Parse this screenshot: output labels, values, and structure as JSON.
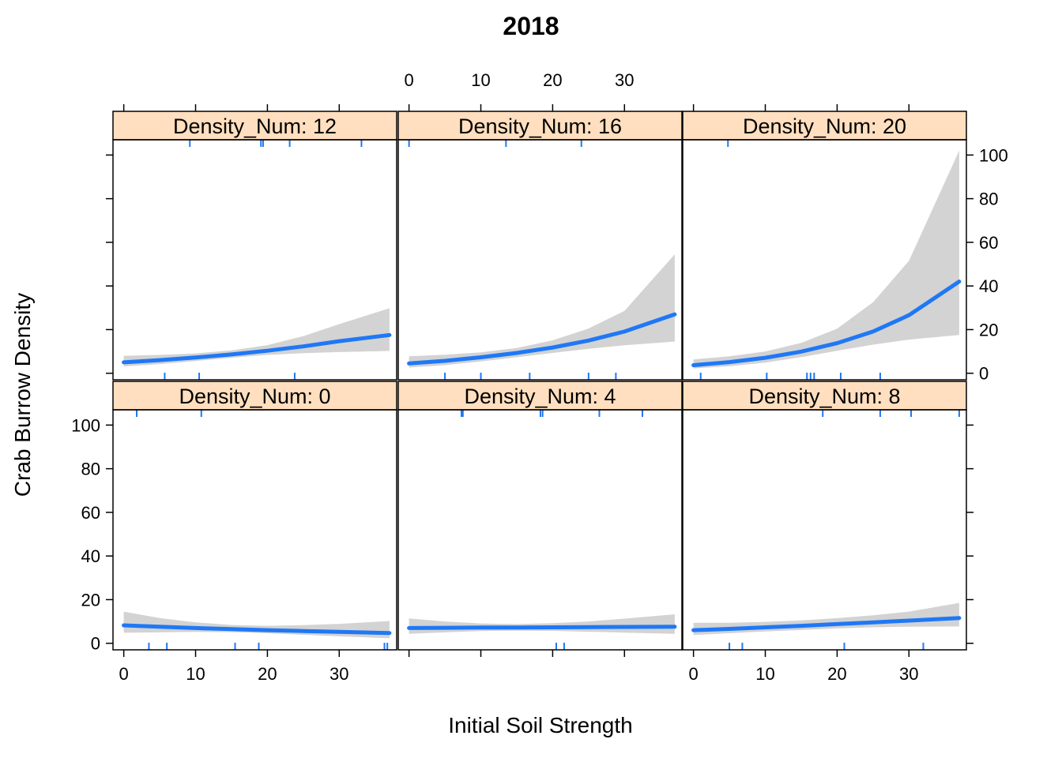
{
  "chart_data": {
    "type": "line",
    "title": "2018",
    "xlabel": "Initial Soil Strength",
    "ylabel": "Crab Burrow Density",
    "xlim": [
      -1.5,
      38
    ],
    "ylim": [
      -3,
      107
    ],
    "x_ticks": [
      0,
      10,
      20,
      30
    ],
    "y_ticks": [
      0,
      20,
      40,
      60,
      80,
      100
    ],
    "grid": false,
    "legend": "none",
    "colors": {
      "line": "#1f78f5",
      "band": "#d3d3d3",
      "strip": "#ffdfbf",
      "rug": "#1f78f5"
    },
    "panels": [
      {
        "strip": "Density_Num: 0",
        "row": 0,
        "col": 0,
        "x": [
          0,
          5,
          10,
          15,
          20,
          25,
          30,
          37
        ],
        "fit": [
          8.2,
          7.6,
          7.0,
          6.5,
          6.0,
          5.6,
          5.2,
          4.7
        ],
        "lower": [
          4.8,
          5.0,
          5.2,
          5.1,
          4.6,
          3.9,
          3.2,
          2.3
        ],
        "upper": [
          14.5,
          11.6,
          9.6,
          8.4,
          8.0,
          8.3,
          8.9,
          10.2
        ],
        "rug_bottom": [
          3.5,
          6,
          15.5,
          18.8,
          36.3,
          36.7
        ],
        "rug_top": [
          1.8,
          10.8
        ]
      },
      {
        "strip": "Density_Num: 4",
        "row": 0,
        "col": 1,
        "x": [
          0,
          5,
          10,
          15,
          20,
          25,
          30,
          37
        ],
        "fit": [
          7.0,
          7.1,
          7.2,
          7.2,
          7.3,
          7.4,
          7.5,
          7.6
        ],
        "lower": [
          4.3,
          5.0,
          5.6,
          5.8,
          5.7,
          5.3,
          4.9,
          4.3
        ],
        "upper": [
          11.4,
          10.0,
          9.1,
          8.8,
          9.2,
          10.0,
          11.3,
          13.3
        ],
        "rug_bottom": [
          20.5,
          21.6
        ],
        "rug_top": [
          7.3,
          7.5,
          18.3,
          18.6,
          26.5,
          32.5
        ]
      },
      {
        "strip": "Density_Num: 8",
        "row": 0,
        "col": 2,
        "x": [
          0,
          5,
          10,
          15,
          20,
          25,
          30,
          37
        ],
        "fit": [
          6.0,
          6.6,
          7.3,
          8.0,
          8.8,
          9.6,
          10.4,
          11.6
        ],
        "lower": [
          3.8,
          4.6,
          5.4,
          6.1,
          6.8,
          7.3,
          7.6,
          7.7
        ],
        "upper": [
          9.4,
          9.4,
          9.8,
          10.5,
          11.5,
          12.8,
          14.5,
          18.5
        ],
        "rug_bottom": [
          5,
          6.8,
          21,
          32
        ],
        "rug_top": [
          18,
          26,
          30.3,
          37
        ]
      },
      {
        "strip": "Density_Num: 12",
        "row": 1,
        "col": 0,
        "x": [
          0,
          5,
          10,
          15,
          20,
          25,
          30,
          37
        ],
        "fit": [
          5.0,
          6.0,
          7.2,
          8.6,
          10.3,
          12.3,
          14.7,
          17.5
        ],
        "lower": [
          3.1,
          4.2,
          5.6,
          7.1,
          8.4,
          9.2,
          9.7,
          10.2
        ],
        "upper": [
          8.0,
          8.4,
          9.1,
          10.5,
          12.9,
          17.0,
          22.5,
          29.8
        ],
        "rug_bottom": [
          5.7,
          10.5,
          23.8
        ],
        "rug_top": [
          9.2,
          19.1,
          19.4,
          23.1,
          33.1
        ]
      },
      {
        "strip": "Density_Num: 16",
        "row": 1,
        "col": 1,
        "x": [
          0,
          5,
          10,
          15,
          20,
          25,
          30,
          37
        ],
        "fit": [
          4.5,
          5.7,
          7.3,
          9.3,
          11.8,
          15.0,
          19.1,
          27.0
        ],
        "lower": [
          2.6,
          3.7,
          5.4,
          7.3,
          9.3,
          11.2,
          12.8,
          14.5
        ],
        "upper": [
          7.8,
          8.5,
          9.6,
          11.6,
          15.1,
          20.5,
          28.6,
          54.5
        ],
        "rug_bottom": [
          5,
          10,
          16.8,
          25,
          28.8
        ],
        "rug_top": [
          0,
          13.5,
          24
        ]
      },
      {
        "strip": "Density_Num: 20",
        "row": 1,
        "col": 2,
        "x": [
          0,
          5,
          10,
          15,
          20,
          25,
          30,
          37
        ],
        "fit": [
          3.7,
          5.1,
          7.1,
          9.9,
          13.8,
          19.1,
          26.6,
          42.0
        ],
        "lower": [
          2.2,
          3.2,
          4.9,
          7.4,
          10.3,
          13.1,
          15.4,
          17.5
        ],
        "upper": [
          6.3,
          7.8,
          10.0,
          13.9,
          20.4,
          32.5,
          51.5,
          102.0
        ],
        "rug_bottom": [
          1,
          10.2,
          15.8,
          16.3,
          16.8,
          20.5,
          26
        ],
        "rug_top": [
          4.8
        ]
      }
    ]
  }
}
